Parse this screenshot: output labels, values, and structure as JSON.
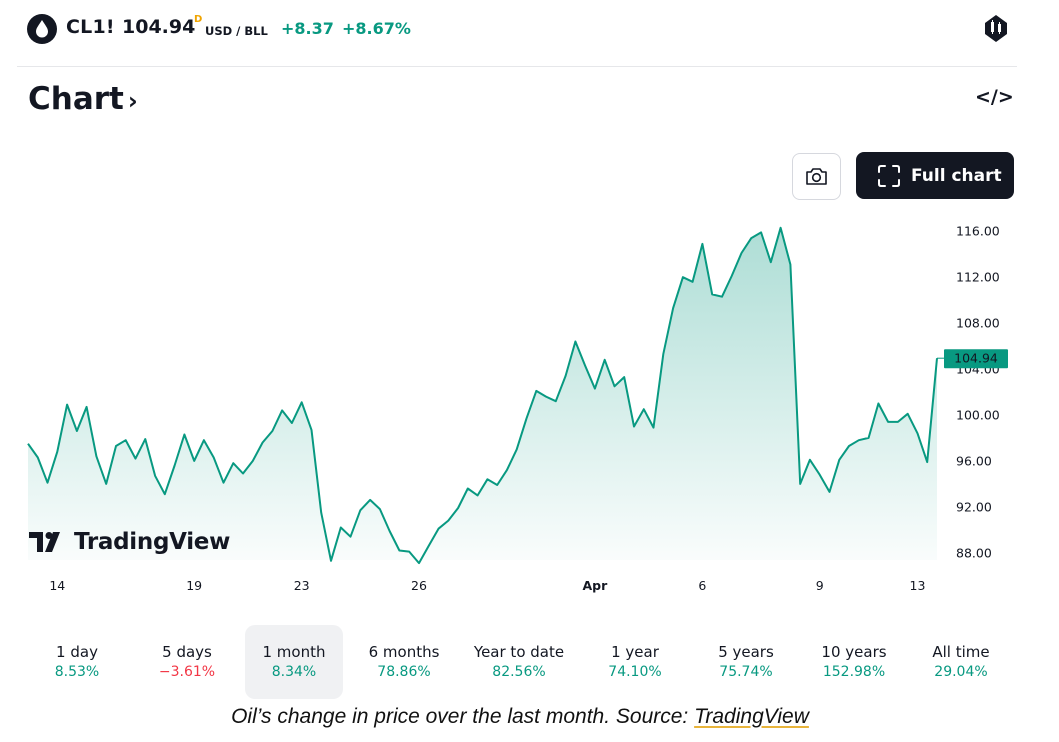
{
  "header": {
    "symbol": "CL1!",
    "price": "104.94",
    "price_flag": "D",
    "currency": "USD / BLL",
    "change_abs": "+8.37",
    "change_pct": "+8.67%",
    "icons": {
      "symbol": "oil-drop-icon",
      "alert": "alert-bell-icon"
    }
  },
  "chart_section": {
    "title": "Chart",
    "chevron": "›",
    "embed_label": "</>",
    "full_chart_label": "Full chart",
    "watermark": "TradingView"
  },
  "chart_data": {
    "type": "area",
    "title": "CL1! 1 month",
    "xlabel": "",
    "ylabel": "USD / BLL",
    "ylim": [
      86.5,
      117.5
    ],
    "y_ticks": [
      "88.00",
      "92.00",
      "96.00",
      "100.00",
      "104.00",
      "108.00",
      "112.00",
      "116.00"
    ],
    "y_tick_values": [
      88,
      92,
      96,
      100,
      104,
      108,
      112,
      116
    ],
    "x_tick_labels": [
      "14",
      "19",
      "23",
      "26",
      "Apr",
      "6",
      "9",
      "13"
    ],
    "x_tick_index": [
      3,
      17,
      28,
      40,
      58,
      69,
      81,
      91
    ],
    "last_value_label": "104.94",
    "series": [
      {
        "name": "CL1!",
        "color": "#089981",
        "values": [
          97.5,
          96.3,
          94.1,
          96.8,
          100.9,
          98.6,
          100.7,
          96.4,
          94.0,
          97.3,
          97.8,
          96.2,
          97.9,
          94.7,
          93.1,
          95.6,
          98.3,
          96.0,
          97.8,
          96.3,
          94.1,
          95.8,
          94.9,
          96.0,
          97.6,
          98.6,
          100.4,
          99.3,
          101.1,
          98.7,
          91.5,
          87.3,
          90.2,
          89.4,
          91.7,
          92.6,
          91.8,
          89.9,
          88.2,
          88.1,
          87.1,
          88.6,
          90.1,
          90.8,
          91.9,
          93.6,
          93.0,
          94.4,
          93.9,
          95.2,
          97.0,
          99.7,
          102.1,
          101.6,
          101.2,
          103.4,
          106.4,
          104.3,
          102.3,
          104.8,
          102.5,
          103.3,
          99.0,
          100.5,
          98.9,
          105.3,
          109.3,
          112.0,
          111.6,
          114.9,
          110.5,
          110.3,
          112.1,
          114.1,
          115.4,
          115.9,
          113.3,
          116.3,
          113.1,
          94.0,
          96.1,
          94.8,
          93.3,
          96.1,
          97.3,
          97.8,
          98.0,
          101.0,
          99.4,
          99.4,
          100.1,
          98.4,
          95.9,
          104.94
        ]
      }
    ]
  },
  "ranges": [
    {
      "label": "1 day",
      "value": "8.53%",
      "dir": "pos"
    },
    {
      "label": "5 days",
      "value": "−3.61%",
      "dir": "neg"
    },
    {
      "label": "1 month",
      "value": "8.34%",
      "dir": "pos",
      "active": true
    },
    {
      "label": "6 months",
      "value": "78.86%",
      "dir": "pos"
    },
    {
      "label": "Year to date",
      "value": "82.56%",
      "dir": "pos"
    },
    {
      "label": "1 year",
      "value": "74.10%",
      "dir": "pos"
    },
    {
      "label": "5 years",
      "value": "75.74%",
      "dir": "pos"
    },
    {
      "label": "10 years",
      "value": "152.98%",
      "dir": "pos"
    },
    {
      "label": "All time",
      "value": "29.04%",
      "dir": "pos"
    }
  ],
  "caption": {
    "text": "Oil’s change in price over the last month. Source:",
    "link": "TradingView"
  }
}
